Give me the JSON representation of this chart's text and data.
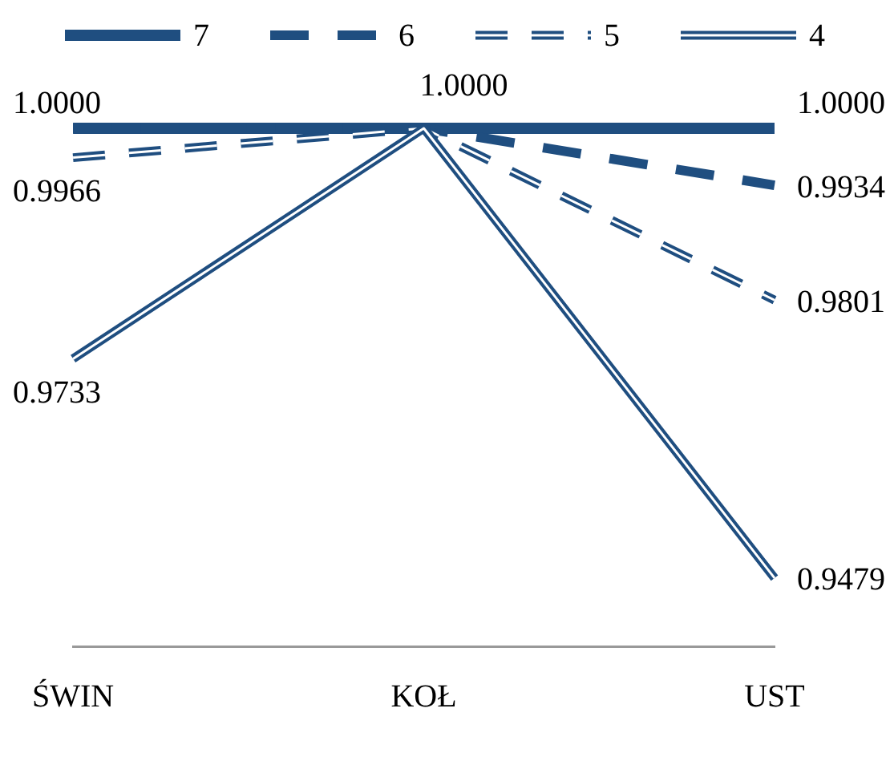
{
  "chart_data": {
    "type": "line",
    "categories": [
      "ŚWIN",
      "KOŁ",
      "UST"
    ],
    "series": [
      {
        "name": "7",
        "color": "#1f4e80",
        "line_style": "solid",
        "values": [
          1.0,
          1.0,
          1.0
        ],
        "value_labels": [
          "1.0000",
          "1.0000",
          "1.0000"
        ]
      },
      {
        "name": "6",
        "color": "#1f4e80",
        "line_style": "dashed",
        "values": [
          1.0,
          1.0,
          0.9934
        ],
        "value_labels": [
          null,
          null,
          "0.9934"
        ]
      },
      {
        "name": "5",
        "color": "#1f4e80",
        "line_style": "dashed",
        "values": [
          0.9966,
          1.0,
          0.9801
        ],
        "value_labels": [
          "0.9966",
          null,
          "0.9801"
        ]
      },
      {
        "name": "4",
        "color": "#1f4e80",
        "line_style": "solid",
        "values": [
          0.9733,
          1.0,
          0.9479
        ],
        "value_labels": [
          "0.9733",
          null,
          "0.9479"
        ]
      }
    ],
    "tick_labels": "x",
    "grid": false,
    "legend": "top",
    "marker": "none"
  }
}
